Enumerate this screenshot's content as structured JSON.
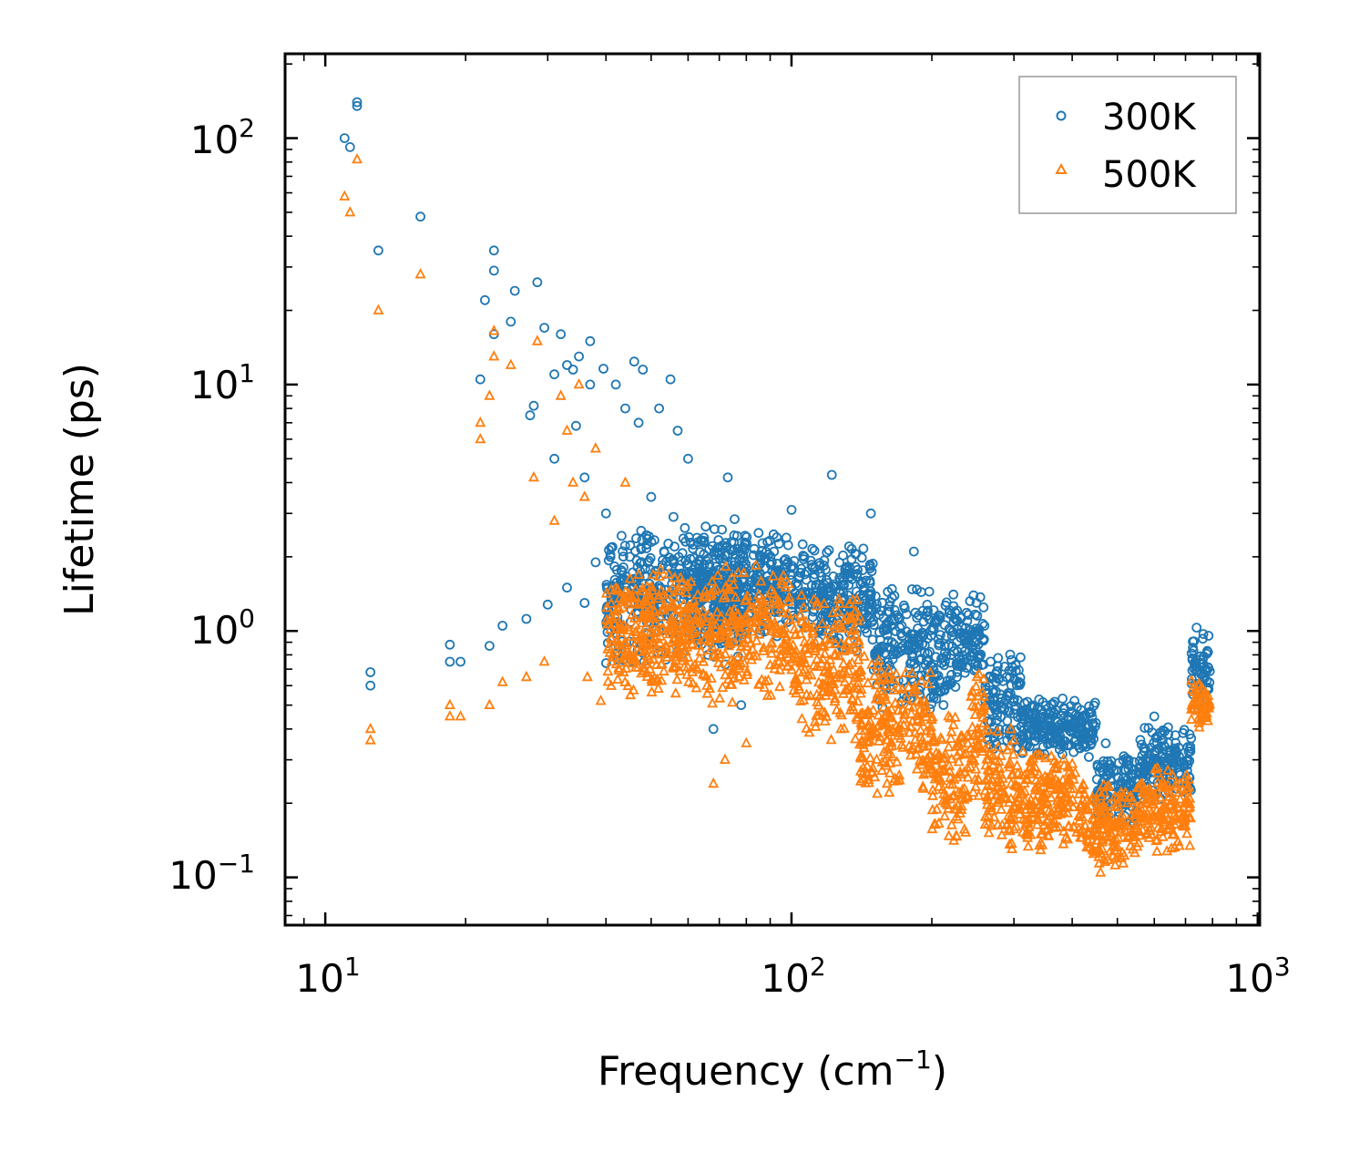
{
  "chart_data": {
    "type": "scatter",
    "xscale": "log",
    "yscale": "log",
    "xlim": [
      8.2,
      1010
    ],
    "ylim": [
      0.064,
      220
    ],
    "grid": false,
    "legend_position": "top-right",
    "xlabel": {
      "main": "Frequency (cm",
      "sup": "−1",
      "tail": ")"
    },
    "ylabel": "Lifetime (ps)",
    "x_ticks": [
      {
        "value": 10,
        "base": "10",
        "exp": "1"
      },
      {
        "value": 100,
        "base": "10",
        "exp": "2"
      },
      {
        "value": 1000,
        "base": "10",
        "exp": "3"
      }
    ],
    "y_ticks": [
      {
        "value": 0.1,
        "base": "10",
        "exp": "−1"
      },
      {
        "value": 1,
        "base": "10",
        "exp": "0"
      },
      {
        "value": 10,
        "base": "10",
        "exp": "1"
      },
      {
        "value": 100,
        "base": "10",
        "exp": "2"
      }
    ],
    "series": [
      {
        "name": "300K",
        "color": "#1f77b4",
        "marker": "circle",
        "scatter_outliers": [
          [
            11.0,
            100
          ],
          [
            11.3,
            92
          ],
          [
            11.7,
            140
          ],
          [
            11.7,
            135
          ],
          [
            12.5,
            0.68
          ],
          [
            12.5,
            0.6
          ],
          [
            13.0,
            35
          ],
          [
            16.0,
            48
          ],
          [
            18.5,
            0.88
          ],
          [
            18.5,
            0.75
          ],
          [
            19.5,
            0.75
          ],
          [
            21.5,
            10.5
          ],
          [
            22.0,
            22
          ],
          [
            22.5,
            0.87
          ],
          [
            23.0,
            16
          ],
          [
            23.0,
            35
          ],
          [
            23.0,
            29
          ],
          [
            24.0,
            1.05
          ],
          [
            25.0,
            18
          ],
          [
            25.5,
            24
          ],
          [
            27.0,
            1.12
          ],
          [
            27.5,
            7.5
          ],
          [
            28.0,
            8.2
          ],
          [
            28.5,
            26
          ],
          [
            29.5,
            17
          ],
          [
            30.0,
            1.28
          ],
          [
            31.0,
            11
          ],
          [
            31.0,
            5
          ],
          [
            32.0,
            16
          ],
          [
            33.0,
            12
          ],
          [
            33.0,
            1.5
          ],
          [
            34.0,
            11.5
          ],
          [
            34.5,
            6.8
          ],
          [
            35.0,
            13
          ],
          [
            36.0,
            1.3
          ],
          [
            36.0,
            4.2
          ],
          [
            37.0,
            10
          ],
          [
            37.0,
            15
          ],
          [
            38.0,
            1.9
          ],
          [
            39.5,
            11.6
          ],
          [
            40.0,
            3.0
          ],
          [
            41.0,
            1.0
          ],
          [
            42.0,
            10
          ],
          [
            43.0,
            1.6
          ],
          [
            44.0,
            8
          ],
          [
            45.0,
            2.0
          ],
          [
            46.0,
            12.4
          ],
          [
            47.0,
            7
          ],
          [
            48.0,
            11.5
          ],
          [
            50.0,
            3.5
          ],
          [
            52.0,
            8.0
          ],
          [
            55.0,
            10.5
          ],
          [
            57.0,
            6.5
          ],
          [
            60.0,
            5.0
          ],
          [
            68.0,
            0.4
          ],
          [
            73.0,
            4.2
          ],
          [
            78.0,
            0.5
          ],
          [
            85.0,
            2.5
          ],
          [
            93.0,
            2.4
          ],
          [
            100.0,
            3.1
          ],
          [
            122.0,
            4.3
          ],
          [
            148.0,
            3.0
          ],
          [
            183.0,
            2.1
          ],
          [
            440.0,
            0.35
          ],
          [
            472.0,
            0.35
          ],
          [
            600.0,
            0.45
          ]
        ],
        "dense_bands": [
          {
            "x_range": [
              40,
              80
            ],
            "y_range": [
              0.7,
              3.0
            ]
          },
          {
            "x_range": [
              60,
              100
            ],
            "y_range": [
              0.9,
              2.6
            ]
          },
          {
            "x_range": [
              100,
              150
            ],
            "y_range": [
              0.8,
              2.3
            ]
          },
          {
            "x_range": [
              150,
              225
            ],
            "y_range": [
              0.45,
              1.6
            ]
          },
          {
            "x_range": [
              225,
              260
            ],
            "y_range": [
              0.6,
              1.45
            ]
          },
          {
            "x_range": [
              260,
              310
            ],
            "y_range": [
              0.3,
              0.9
            ]
          },
          {
            "x_range": [
              310,
              450
            ],
            "y_range": [
              0.3,
              0.55
            ]
          },
          {
            "x_range": [
              450,
              560
            ],
            "y_range": [
              0.15,
              0.35
            ]
          },
          {
            "x_range": [
              560,
              720
            ],
            "y_range": [
              0.2,
              0.42
            ]
          },
          {
            "x_range": [
              720,
              790
            ],
            "y_range": [
              0.45,
              1.05
            ]
          }
        ]
      },
      {
        "name": "500K",
        "color": "#ff7f0e",
        "marker": "triangle",
        "scatter_outliers": [
          [
            11.0,
            58
          ],
          [
            11.3,
            50
          ],
          [
            11.7,
            82
          ],
          [
            12.5,
            0.4
          ],
          [
            12.5,
            0.36
          ],
          [
            13.0,
            20
          ],
          [
            16.0,
            28
          ],
          [
            18.5,
            0.5
          ],
          [
            18.5,
            0.45
          ],
          [
            19.5,
            0.45
          ],
          [
            21.5,
            6
          ],
          [
            21.5,
            7
          ],
          [
            22.5,
            0.5
          ],
          [
            22.5,
            9
          ],
          [
            23.0,
            13
          ],
          [
            23.0,
            16.5
          ],
          [
            24.0,
            0.62
          ],
          [
            25.0,
            12
          ],
          [
            27.0,
            0.65
          ],
          [
            28.0,
            4.2
          ],
          [
            28.5,
            15
          ],
          [
            29.5,
            0.75
          ],
          [
            31.0,
            2.8
          ],
          [
            32.0,
            9
          ],
          [
            33.0,
            6.5
          ],
          [
            34.0,
            4.0
          ],
          [
            35.0,
            10
          ],
          [
            36.0,
            3.5
          ],
          [
            36.5,
            0.65
          ],
          [
            38.0,
            5.5
          ],
          [
            39.0,
            0.52
          ],
          [
            42.0,
            1.2
          ],
          [
            44.0,
            4.0
          ],
          [
            68.0,
            0.24
          ],
          [
            72.0,
            0.3
          ],
          [
            80.0,
            0.35
          ]
        ],
        "dense_bands": [
          {
            "x_range": [
              40,
              100
            ],
            "y_range": [
              0.5,
              1.9
            ]
          },
          {
            "x_range": [
              100,
              140
            ],
            "y_range": [
              0.35,
              1.5
            ]
          },
          {
            "x_range": [
              140,
              200
            ],
            "y_range": [
              0.2,
              0.8
            ]
          },
          {
            "x_range": [
              200,
              240
            ],
            "y_range": [
              0.13,
              0.5
            ]
          },
          {
            "x_range": [
              240,
              260
            ],
            "y_range": [
              0.15,
              0.9
            ]
          },
          {
            "x_range": [
              260,
              300
            ],
            "y_range": [
              0.12,
              0.45
            ]
          },
          {
            "x_range": [
              300,
              430
            ],
            "y_range": [
              0.12,
              0.35
            ]
          },
          {
            "x_range": [
              430,
              560
            ],
            "y_range": [
              0.1,
              0.25
            ]
          },
          {
            "x_range": [
              560,
              720
            ],
            "y_range": [
              0.12,
              0.3
            ]
          },
          {
            "x_range": [
              720,
              790
            ],
            "y_range": [
              0.4,
              0.65
            ]
          }
        ]
      }
    ]
  }
}
